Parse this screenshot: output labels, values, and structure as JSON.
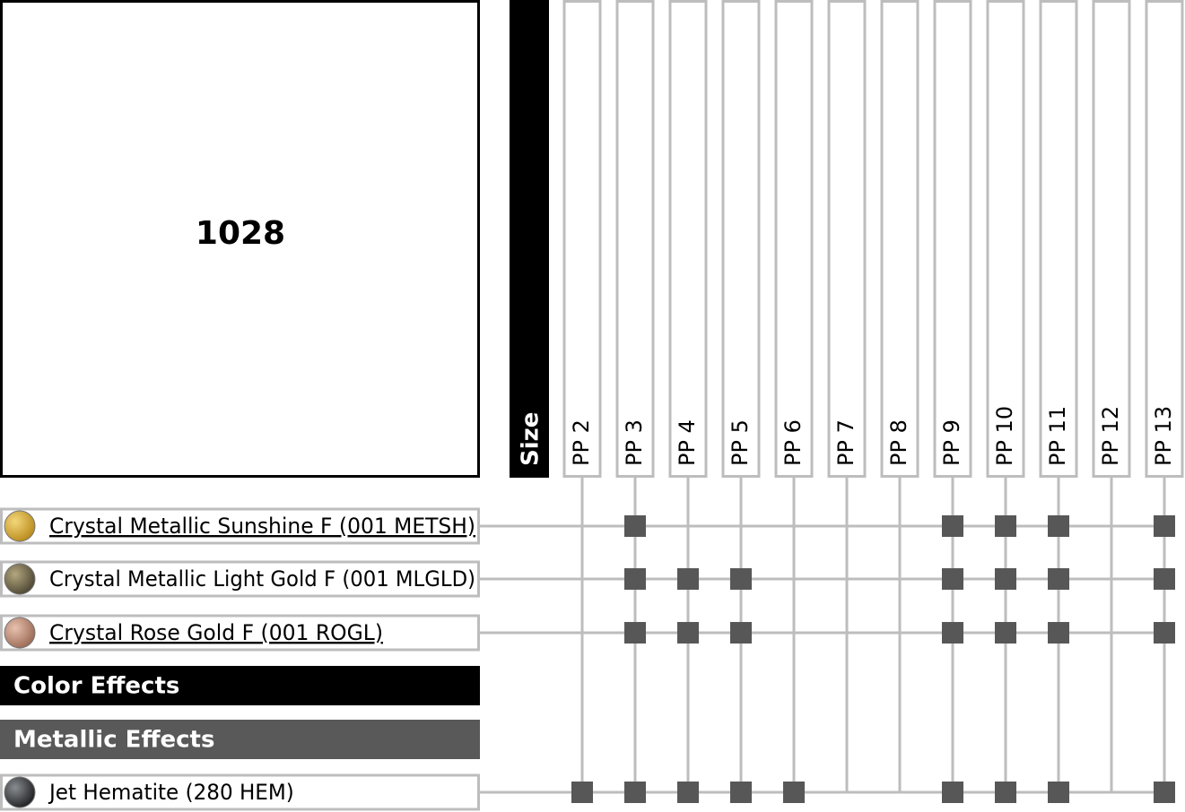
{
  "article": "1028",
  "size_header": "Size",
  "sizes": [
    "PP 2",
    "PP 3",
    "PP 4",
    "PP 5",
    "PP 6",
    "PP 7",
    "PP 8",
    "PP 9",
    "PP 10",
    "PP 11",
    "PP 12",
    "PP 13"
  ],
  "rows": [
    {
      "label": "Crystal Metallic Sunshine F (001 METSH)",
      "link": true,
      "swatch": [
        "#f3d77a",
        "#b98a1c"
      ],
      "available": [
        false,
        true,
        false,
        false,
        false,
        false,
        false,
        true,
        true,
        true,
        false,
        true
      ]
    },
    {
      "label": "Crystal Metallic Light Gold F (001 MLGLD)",
      "link": false,
      "swatch": [
        "#b3a77e",
        "#4d4634"
      ],
      "available": [
        false,
        true,
        true,
        true,
        false,
        false,
        false,
        true,
        true,
        true,
        false,
        true
      ]
    },
    {
      "label": "Crystal Rose Gold F (001 ROGL)",
      "link": true,
      "swatch": [
        "#e8c1ae",
        "#9a6a55"
      ],
      "available": [
        false,
        true,
        true,
        true,
        false,
        false,
        false,
        true,
        true,
        true,
        false,
        true
      ]
    },
    {
      "section": "Color Effects",
      "color": "#000000"
    },
    {
      "section": "Metallic Effects",
      "color": "#595959"
    },
    {
      "label": "Jet Hematite (280 HEM)",
      "link": false,
      "swatch": [
        "#8a8d91",
        "#1e2022"
      ],
      "available": [
        true,
        true,
        true,
        true,
        true,
        false,
        false,
        true,
        true,
        true,
        false,
        true
      ]
    }
  ]
}
